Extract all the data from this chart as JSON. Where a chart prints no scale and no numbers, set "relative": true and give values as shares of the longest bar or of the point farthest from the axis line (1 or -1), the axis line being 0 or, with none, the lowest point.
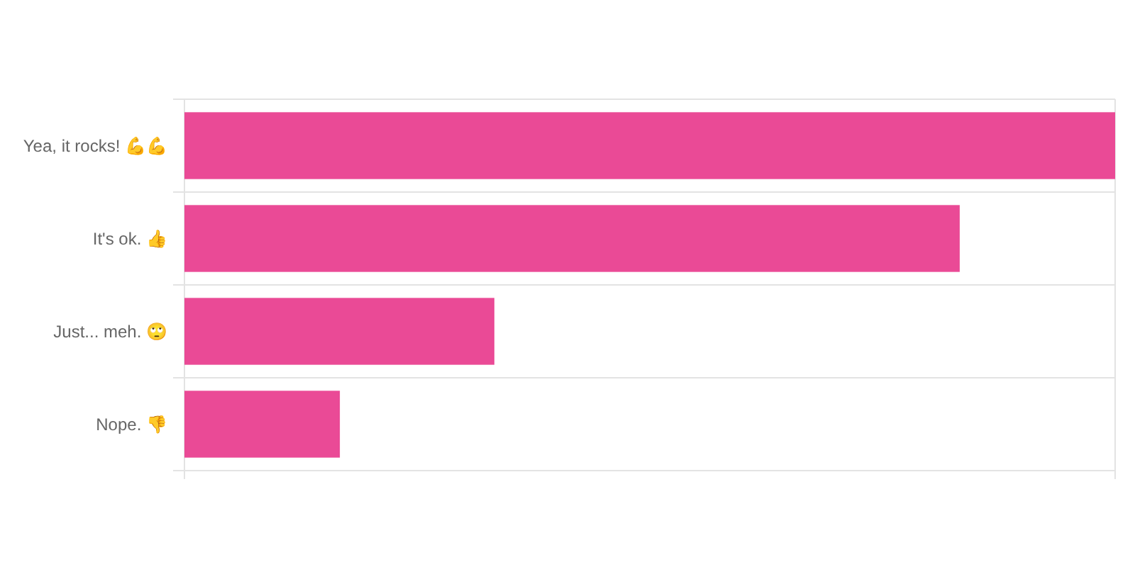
{
  "chart_data": {
    "type": "bar",
    "orientation": "horizontal",
    "relative": true,
    "categories": [
      "Yea, it rocks! 💪💪",
      "It's ok. 👍",
      "Just... meh. 🙄",
      "Nope. 👎"
    ],
    "values": [
      1,
      0.833,
      0.333,
      0.167
    ],
    "color": "#ea4a96",
    "grid": true
  }
}
